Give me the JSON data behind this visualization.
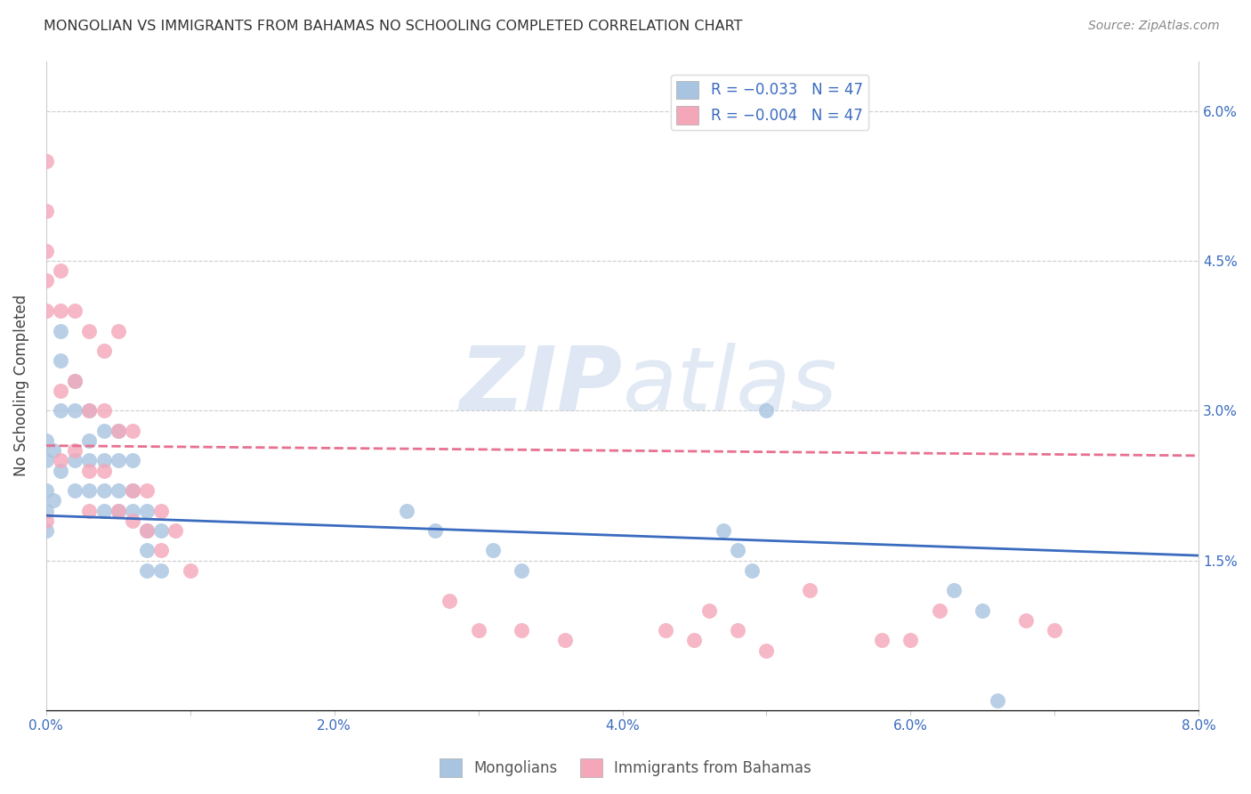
{
  "title": "MONGOLIAN VS IMMIGRANTS FROM BAHAMAS NO SCHOOLING COMPLETED CORRELATION CHART",
  "source": "Source: ZipAtlas.com",
  "ylabel": "No Schooling Completed",
  "xlim": [
    0.0,
    0.08
  ],
  "ylim": [
    0.0,
    0.065
  ],
  "xticks": [
    0.0,
    0.01,
    0.02,
    0.03,
    0.04,
    0.05,
    0.06,
    0.07,
    0.08
  ],
  "xticklabels": [
    "0.0%",
    "",
    "2.0%",
    "",
    "4.0%",
    "",
    "6.0%",
    "",
    "8.0%"
  ],
  "yticks": [
    0.0,
    0.015,
    0.03,
    0.045,
    0.06
  ],
  "yticklabels_right": [
    "",
    "1.5%",
    "3.0%",
    "4.5%",
    "6.0%"
  ],
  "legend1_label": "R = −0.033   N = 47",
  "legend2_label": "R = −0.004   N = 47",
  "bottom_legend1": "Mongolians",
  "bottom_legend2": "Immigrants from Bahamas",
  "blue_color": "#a8c4e0",
  "pink_color": "#f4a7b9",
  "blue_line_color": "#3a6bbf",
  "pink_line_color": "#e87090",
  "watermark_zip": "ZIP",
  "watermark_atlas": "atlas",
  "blue_scatter_x": [
    0.0005,
    0.001,
    0.0005,
    0.0,
    0.0,
    0.0,
    0.0,
    0.0,
    0.001,
    0.001,
    0.001,
    0.002,
    0.002,
    0.002,
    0.002,
    0.003,
    0.003,
    0.003,
    0.003,
    0.004,
    0.004,
    0.004,
    0.004,
    0.005,
    0.005,
    0.005,
    0.005,
    0.006,
    0.006,
    0.006,
    0.007,
    0.007,
    0.007,
    0.007,
    0.008,
    0.008,
    0.025,
    0.027,
    0.031,
    0.033,
    0.047,
    0.048,
    0.049,
    0.05,
    0.063,
    0.065,
    0.066
  ],
  "blue_scatter_y": [
    0.026,
    0.024,
    0.021,
    0.027,
    0.025,
    0.022,
    0.02,
    0.018,
    0.038,
    0.035,
    0.03,
    0.033,
    0.03,
    0.025,
    0.022,
    0.03,
    0.027,
    0.025,
    0.022,
    0.028,
    0.025,
    0.022,
    0.02,
    0.028,
    0.025,
    0.022,
    0.02,
    0.025,
    0.022,
    0.02,
    0.02,
    0.018,
    0.016,
    0.014,
    0.018,
    0.014,
    0.02,
    0.018,
    0.016,
    0.014,
    0.018,
    0.016,
    0.014,
    0.03,
    0.012,
    0.01,
    0.001
  ],
  "pink_scatter_x": [
    0.0,
    0.0,
    0.0,
    0.0,
    0.0,
    0.0,
    0.001,
    0.001,
    0.001,
    0.001,
    0.002,
    0.002,
    0.002,
    0.003,
    0.003,
    0.003,
    0.003,
    0.004,
    0.004,
    0.004,
    0.005,
    0.005,
    0.005,
    0.006,
    0.006,
    0.006,
    0.007,
    0.007,
    0.008,
    0.008,
    0.009,
    0.01,
    0.028,
    0.03,
    0.033,
    0.036,
    0.043,
    0.045,
    0.046,
    0.048,
    0.05,
    0.053,
    0.058,
    0.06,
    0.062,
    0.068,
    0.07
  ],
  "pink_scatter_y": [
    0.055,
    0.05,
    0.046,
    0.043,
    0.04,
    0.019,
    0.044,
    0.04,
    0.032,
    0.025,
    0.04,
    0.033,
    0.026,
    0.038,
    0.03,
    0.024,
    0.02,
    0.036,
    0.03,
    0.024,
    0.038,
    0.028,
    0.02,
    0.028,
    0.022,
    0.019,
    0.022,
    0.018,
    0.02,
    0.016,
    0.018,
    0.014,
    0.011,
    0.008,
    0.008,
    0.007,
    0.008,
    0.007,
    0.01,
    0.008,
    0.006,
    0.012,
    0.007,
    0.007,
    0.01,
    0.009,
    0.008
  ],
  "blue_trend_x": [
    0.0,
    0.08
  ],
  "blue_trend_y": [
    0.0195,
    0.0155
  ],
  "pink_trend_x": [
    0.0,
    0.08
  ],
  "pink_trend_y": [
    0.0265,
    0.0255
  ]
}
